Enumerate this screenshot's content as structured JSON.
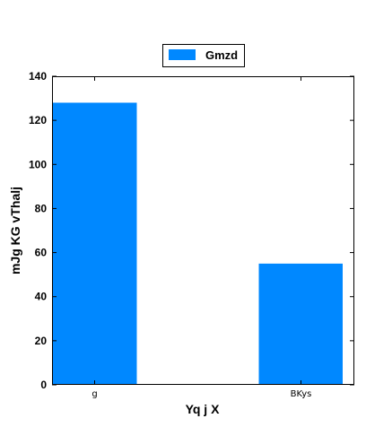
{
  "chart_data": {
    "type": "bar",
    "categories": [
      "g",
      "BKys"
    ],
    "series": [
      {
        "name": "Gmzd",
        "values": [
          128,
          55
        ]
      }
    ],
    "xlabel": "Yq  j  X",
    "ylabel": "mJg KG vThalj",
    "ylim": [
      0,
      140
    ],
    "yticks": [
      0,
      20,
      40,
      60,
      80,
      100,
      120,
      140
    ],
    "grid": false,
    "legend_position": "top-center",
    "colors": {
      "bar": "#0088ff",
      "axis": "#000000",
      "background": "#ffffff"
    }
  }
}
